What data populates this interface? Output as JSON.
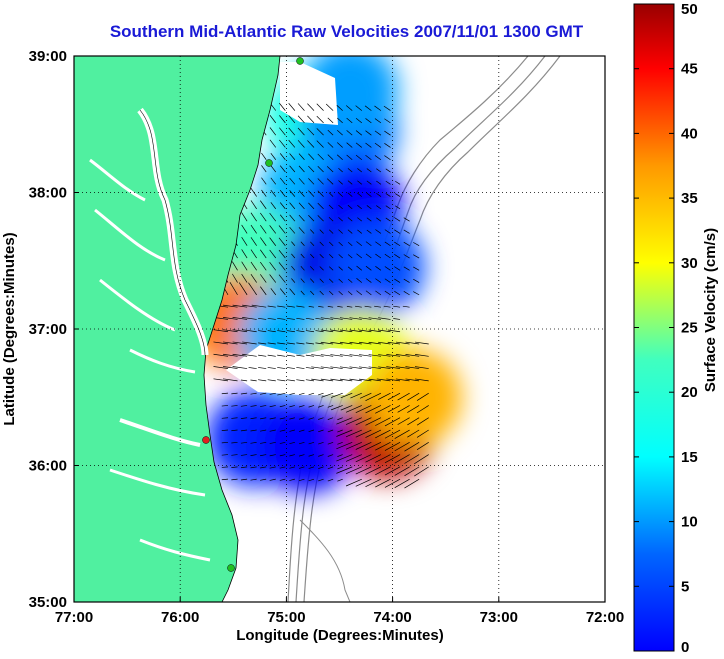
{
  "chart_data": {
    "type": "heatmap",
    "title": "Southern Mid-Atlantic Raw Velocities 2007/11/01 1300 GMT",
    "xlabel": "Longitude (Degrees:Minutes)",
    "ylabel": "Latitude (Degrees:Minutes)",
    "colorbar_label": "Surface Velocity (cm/s)",
    "x_ticks": [
      "77:00",
      "76:00",
      "75:00",
      "74:00",
      "73:00",
      "72:00"
    ],
    "y_ticks": [
      "39:00",
      "38:00",
      "37:00",
      "36:00",
      "35:00"
    ],
    "colorbar_ticks": [
      "0",
      "5",
      "10",
      "15",
      "20",
      "25",
      "30",
      "35",
      "40",
      "45",
      "50"
    ],
    "xlim": [
      -77,
      -72
    ],
    "ylim": [
      35,
      39
    ],
    "clim": [
      0,
      50
    ],
    "grid": true,
    "colormap": "jet",
    "land_color": "#50f0a0",
    "velocity_field": [
      {
        "lon": -74.75,
        "lat": 38.55,
        "speed": 20
      },
      {
        "lon": -74.4,
        "lat": 38.45,
        "speed": 12
      },
      {
        "lon": -74.8,
        "lat": 38.0,
        "speed": 15
      },
      {
        "lon": -74.35,
        "lat": 37.9,
        "speed": 6
      },
      {
        "lon": -75.3,
        "lat": 37.55,
        "speed": 22
      },
      {
        "lon": -74.6,
        "lat": 37.45,
        "speed": 5
      },
      {
        "lon": -74.15,
        "lat": 37.45,
        "speed": 10
      },
      {
        "lon": -75.45,
        "lat": 37.05,
        "speed": 38
      },
      {
        "lon": -75.0,
        "lat": 36.95,
        "speed": 15
      },
      {
        "lon": -74.3,
        "lat": 36.8,
        "speed": 30
      },
      {
        "lon": -75.3,
        "lat": 36.2,
        "speed": 8
      },
      {
        "lon": -74.8,
        "lat": 36.15,
        "speed": 6
      },
      {
        "lon": -74.05,
        "lat": 36.25,
        "speed": 47
      },
      {
        "lon": -73.8,
        "lat": 36.5,
        "speed": 35
      },
      {
        "lon": -74.4,
        "lat": 38.75,
        "speed": 14
      }
    ]
  }
}
